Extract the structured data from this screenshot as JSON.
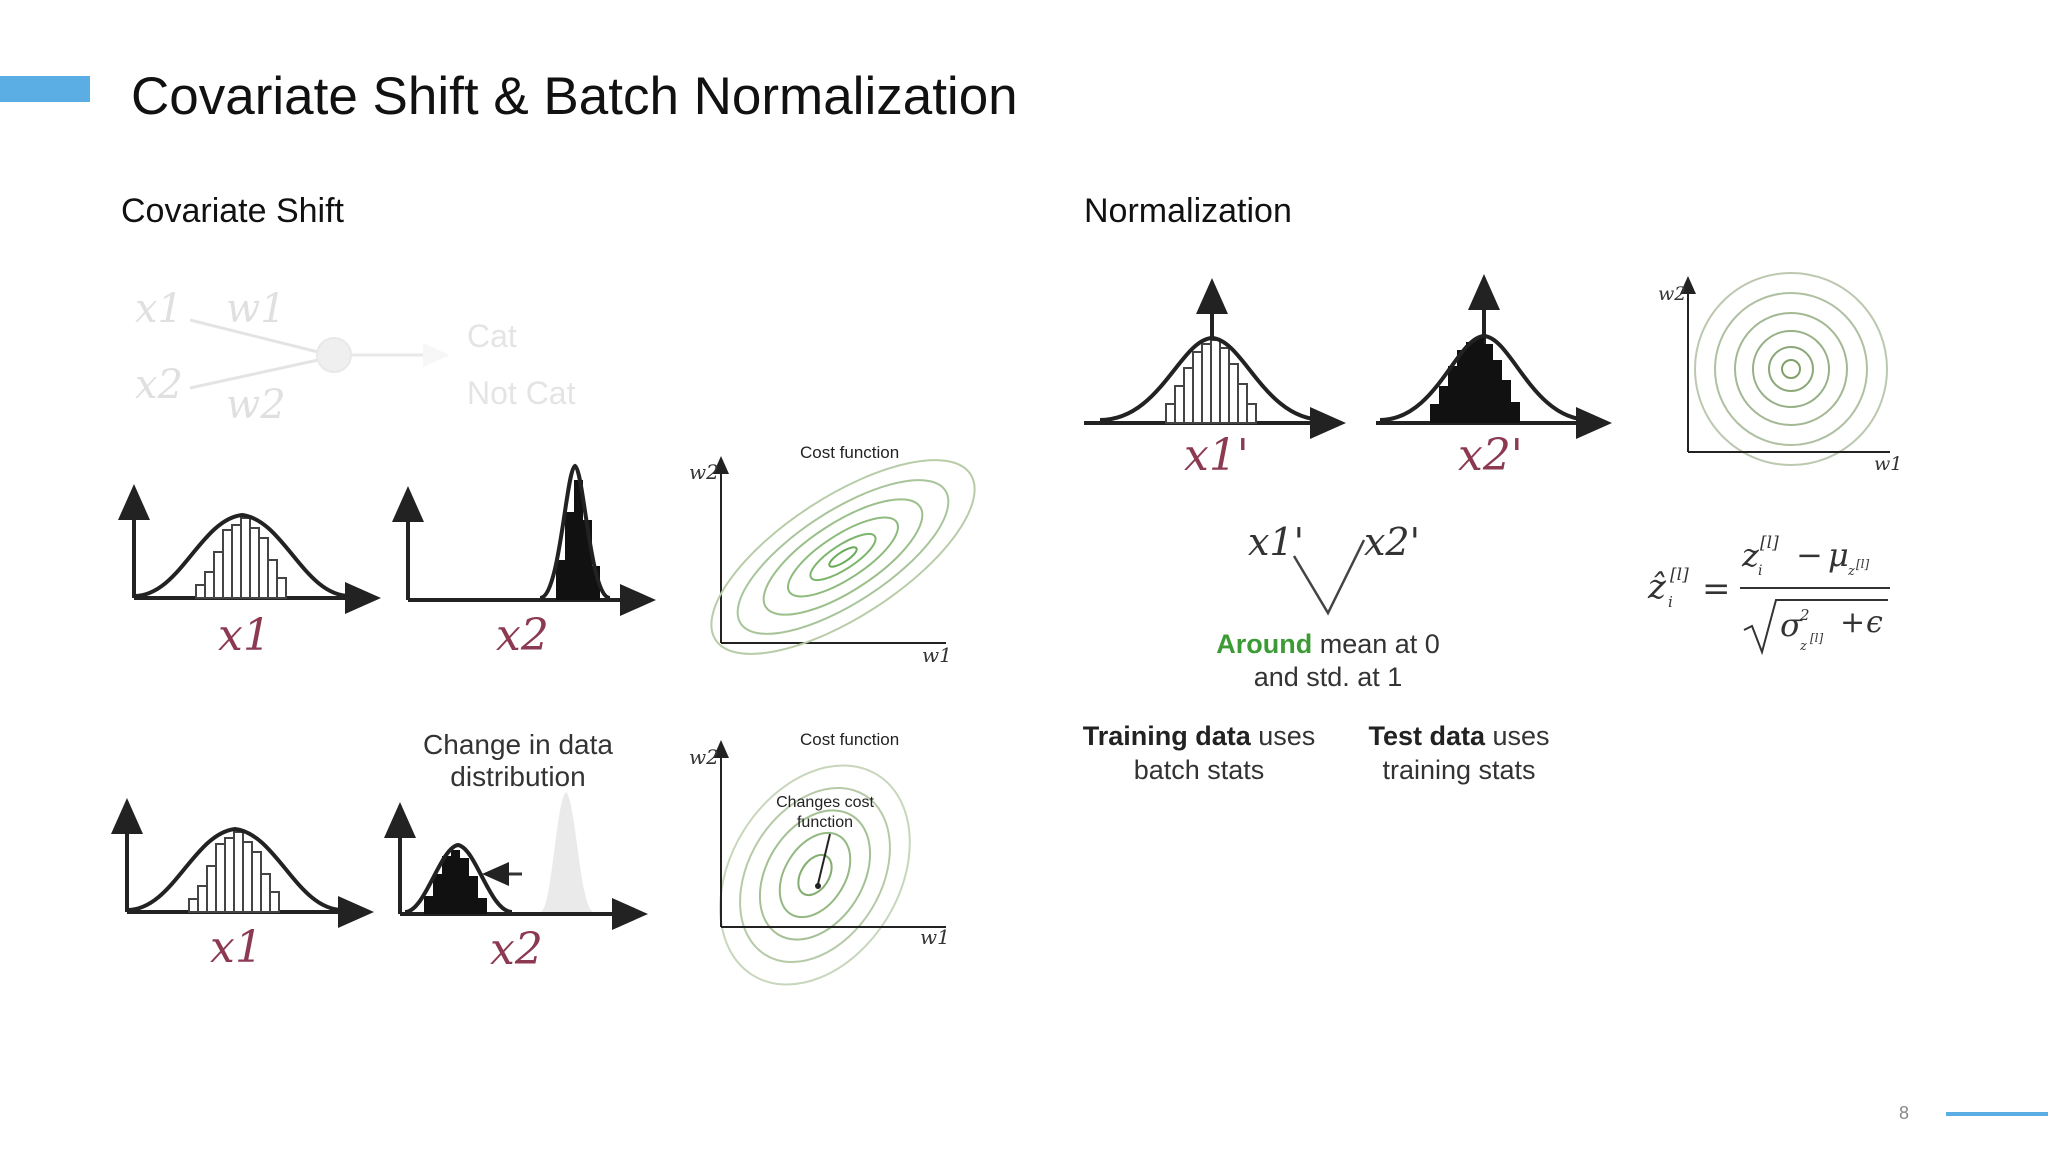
{
  "slide": {
    "title": "Covariate Shift & Batch Normalization",
    "page_number": "8",
    "accent_color": "#5aaee3"
  },
  "covariate_shift": {
    "heading": "Covariate Shift",
    "network": {
      "inputs": [
        "x1",
        "x2"
      ],
      "weights": [
        "w1",
        "w2"
      ],
      "outputs": [
        "Cat",
        "Not Cat"
      ]
    },
    "top_row": {
      "left_label": "x1",
      "right_label": "x2"
    },
    "bottom_row": {
      "left_label": "x1",
      "right_label": "x2",
      "annotation_line1": "Change in data",
      "annotation_line2": "distribution"
    },
    "cost_plot_top": {
      "title": "Cost function",
      "x_axis": "w1",
      "y_axis": "w2"
    },
    "cost_plot_bottom": {
      "title": "Cost function",
      "x_axis": "w1",
      "y_axis": "w2",
      "note_line1": "Changes cost",
      "note_line2": "function"
    }
  },
  "normalization": {
    "heading": "Normalization",
    "dist_labels": [
      "x1'",
      "x2'"
    ],
    "v_labels": [
      "x1'",
      "x2'"
    ],
    "mean_note": {
      "highlight": "Around",
      "line1_rest": " mean at 0",
      "line2": "and std. at 1",
      "highlight_color": "#3d9b35"
    },
    "training_note": {
      "bold": "Training data",
      "rest": " uses",
      "line2": "batch stats"
    },
    "test_note": {
      "bold": "Test data",
      "rest": " uses",
      "line2": "training stats"
    },
    "cost_plot": {
      "x_axis": "w1",
      "y_axis": "w2"
    }
  }
}
